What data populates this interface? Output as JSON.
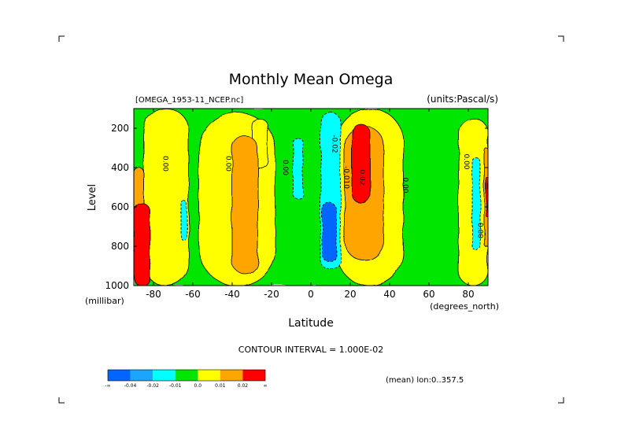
{
  "chart_data": {
    "type": "heatmap",
    "title": "Monthly Mean Omega",
    "subtitle_left": "[OMEGA_1953-11_NCEP.nc]",
    "subtitle_right": "(units:Pascal/s)",
    "xlabel": "Latitude",
    "xunits": "(degrees_north)",
    "ylabel": "Level",
    "yunits": "(millibar)",
    "xlim": [
      -90,
      90
    ],
    "ylim": [
      1000,
      100
    ],
    "x_ticks": [
      -80,
      -60,
      -40,
      -20,
      0,
      20,
      40,
      60,
      80
    ],
    "y_ticks": [
      200,
      400,
      600,
      800,
      1000
    ],
    "contour_interval": "CONTOUR INTERVAL = 1.000E-02",
    "annotation": "(mean) lon:0..357.5",
    "colorbar": {
      "labels": [
        "-∞",
        "-0.04",
        "-0.02",
        "-0.01",
        "0.0",
        "0.01",
        "0.02",
        "∞"
      ],
      "colors": [
        "#0066ff",
        "#1aa6ff",
        "#00ffff",
        "#00e600",
        "#ffff00",
        "#ffa500",
        "#ff0000"
      ]
    },
    "contour_labels": [
      {
        "text": "0.00",
        "lat": -75,
        "lev": 380
      },
      {
        "text": "0.00",
        "lat": -43,
        "lev": 380
      },
      {
        "text": "0.00",
        "lat": -14,
        "lev": 400
      },
      {
        "text": "-0.02",
        "lat": 11,
        "lev": 280
      },
      {
        "text": "-0.010",
        "lat": 17,
        "lev": 450
      },
      {
        "text": "0.02",
        "lat": 25,
        "lev": 450
      },
      {
        "text": "0.00",
        "lat": 47,
        "lev": 490
      },
      {
        "text": "0.00",
        "lat": 78,
        "lev": 370
      },
      {
        "text": "0.00",
        "lat": 85,
        "lev": 720
      }
    ],
    "regions": [
      {
        "name": "negative",
        "level": -0.005,
        "lat": [
          -90,
          90
        ],
        "lev": [
          100,
          1000
        ]
      },
      {
        "name": "positive",
        "level": 0.005,
        "lat": [
          -85,
          -62
        ],
        "lev": [
          100,
          1000
        ]
      },
      {
        "name": "positive",
        "level": 0.005,
        "lat": [
          -57,
          -18
        ],
        "lev": [
          120,
          1000
        ]
      },
      {
        "name": "positive",
        "level": 0.005,
        "lat": [
          13,
          47
        ],
        "lev": [
          100,
          1000
        ]
      },
      {
        "name": "positive",
        "level": 0.005,
        "lat": [
          75,
          90
        ],
        "lev": [
          150,
          1000
        ]
      },
      {
        "name": "positive",
        "level": 0.005,
        "lat": [
          -30,
          -22
        ],
        "lev": [
          150,
          400
        ]
      },
      {
        "name": "positive",
        "level": 0.015,
        "lat": [
          -40,
          -27
        ],
        "lev": [
          240,
          940
        ]
      },
      {
        "name": "positive",
        "level": 0.015,
        "lat": [
          17,
          37
        ],
        "lev": [
          190,
          870
        ]
      },
      {
        "name": "positive",
        "level": 0.015,
        "lat": [
          -90,
          -85
        ],
        "lev": [
          400,
          900
        ]
      },
      {
        "name": "positive",
        "level": 0.015,
        "lat": [
          88,
          90
        ],
        "lev": [
          300,
          800
        ]
      },
      {
        "name": "negative",
        "level": -0.015,
        "lat": [
          5,
          15
        ],
        "lev": [
          120,
          920
        ]
      },
      {
        "name": "negative",
        "level": -0.015,
        "lat": [
          -9,
          -4
        ],
        "lev": [
          250,
          560
        ]
      },
      {
        "name": "negative",
        "level": -0.015,
        "lat": [
          -66,
          -63
        ],
        "lev": [
          570,
          770
        ]
      },
      {
        "name": "negative",
        "level": -0.015,
        "lat": [
          82,
          86
        ],
        "lev": [
          350,
          820
        ]
      },
      {
        "name": "negative",
        "level": -0.03,
        "lat": [
          6,
          13
        ],
        "lev": [
          580,
          880
        ]
      },
      {
        "name": "positive",
        "level": 0.03,
        "lat": [
          21,
          30
        ],
        "lev": [
          180,
          580
        ]
      },
      {
        "name": "positive",
        "level": 0.03,
        "lat": [
          -90,
          -82
        ],
        "lev": [
          580,
          1000
        ]
      },
      {
        "name": "positive",
        "level": 0.03,
        "lat": [
          89,
          90
        ],
        "lev": [
          450,
          650
        ]
      }
    ]
  }
}
